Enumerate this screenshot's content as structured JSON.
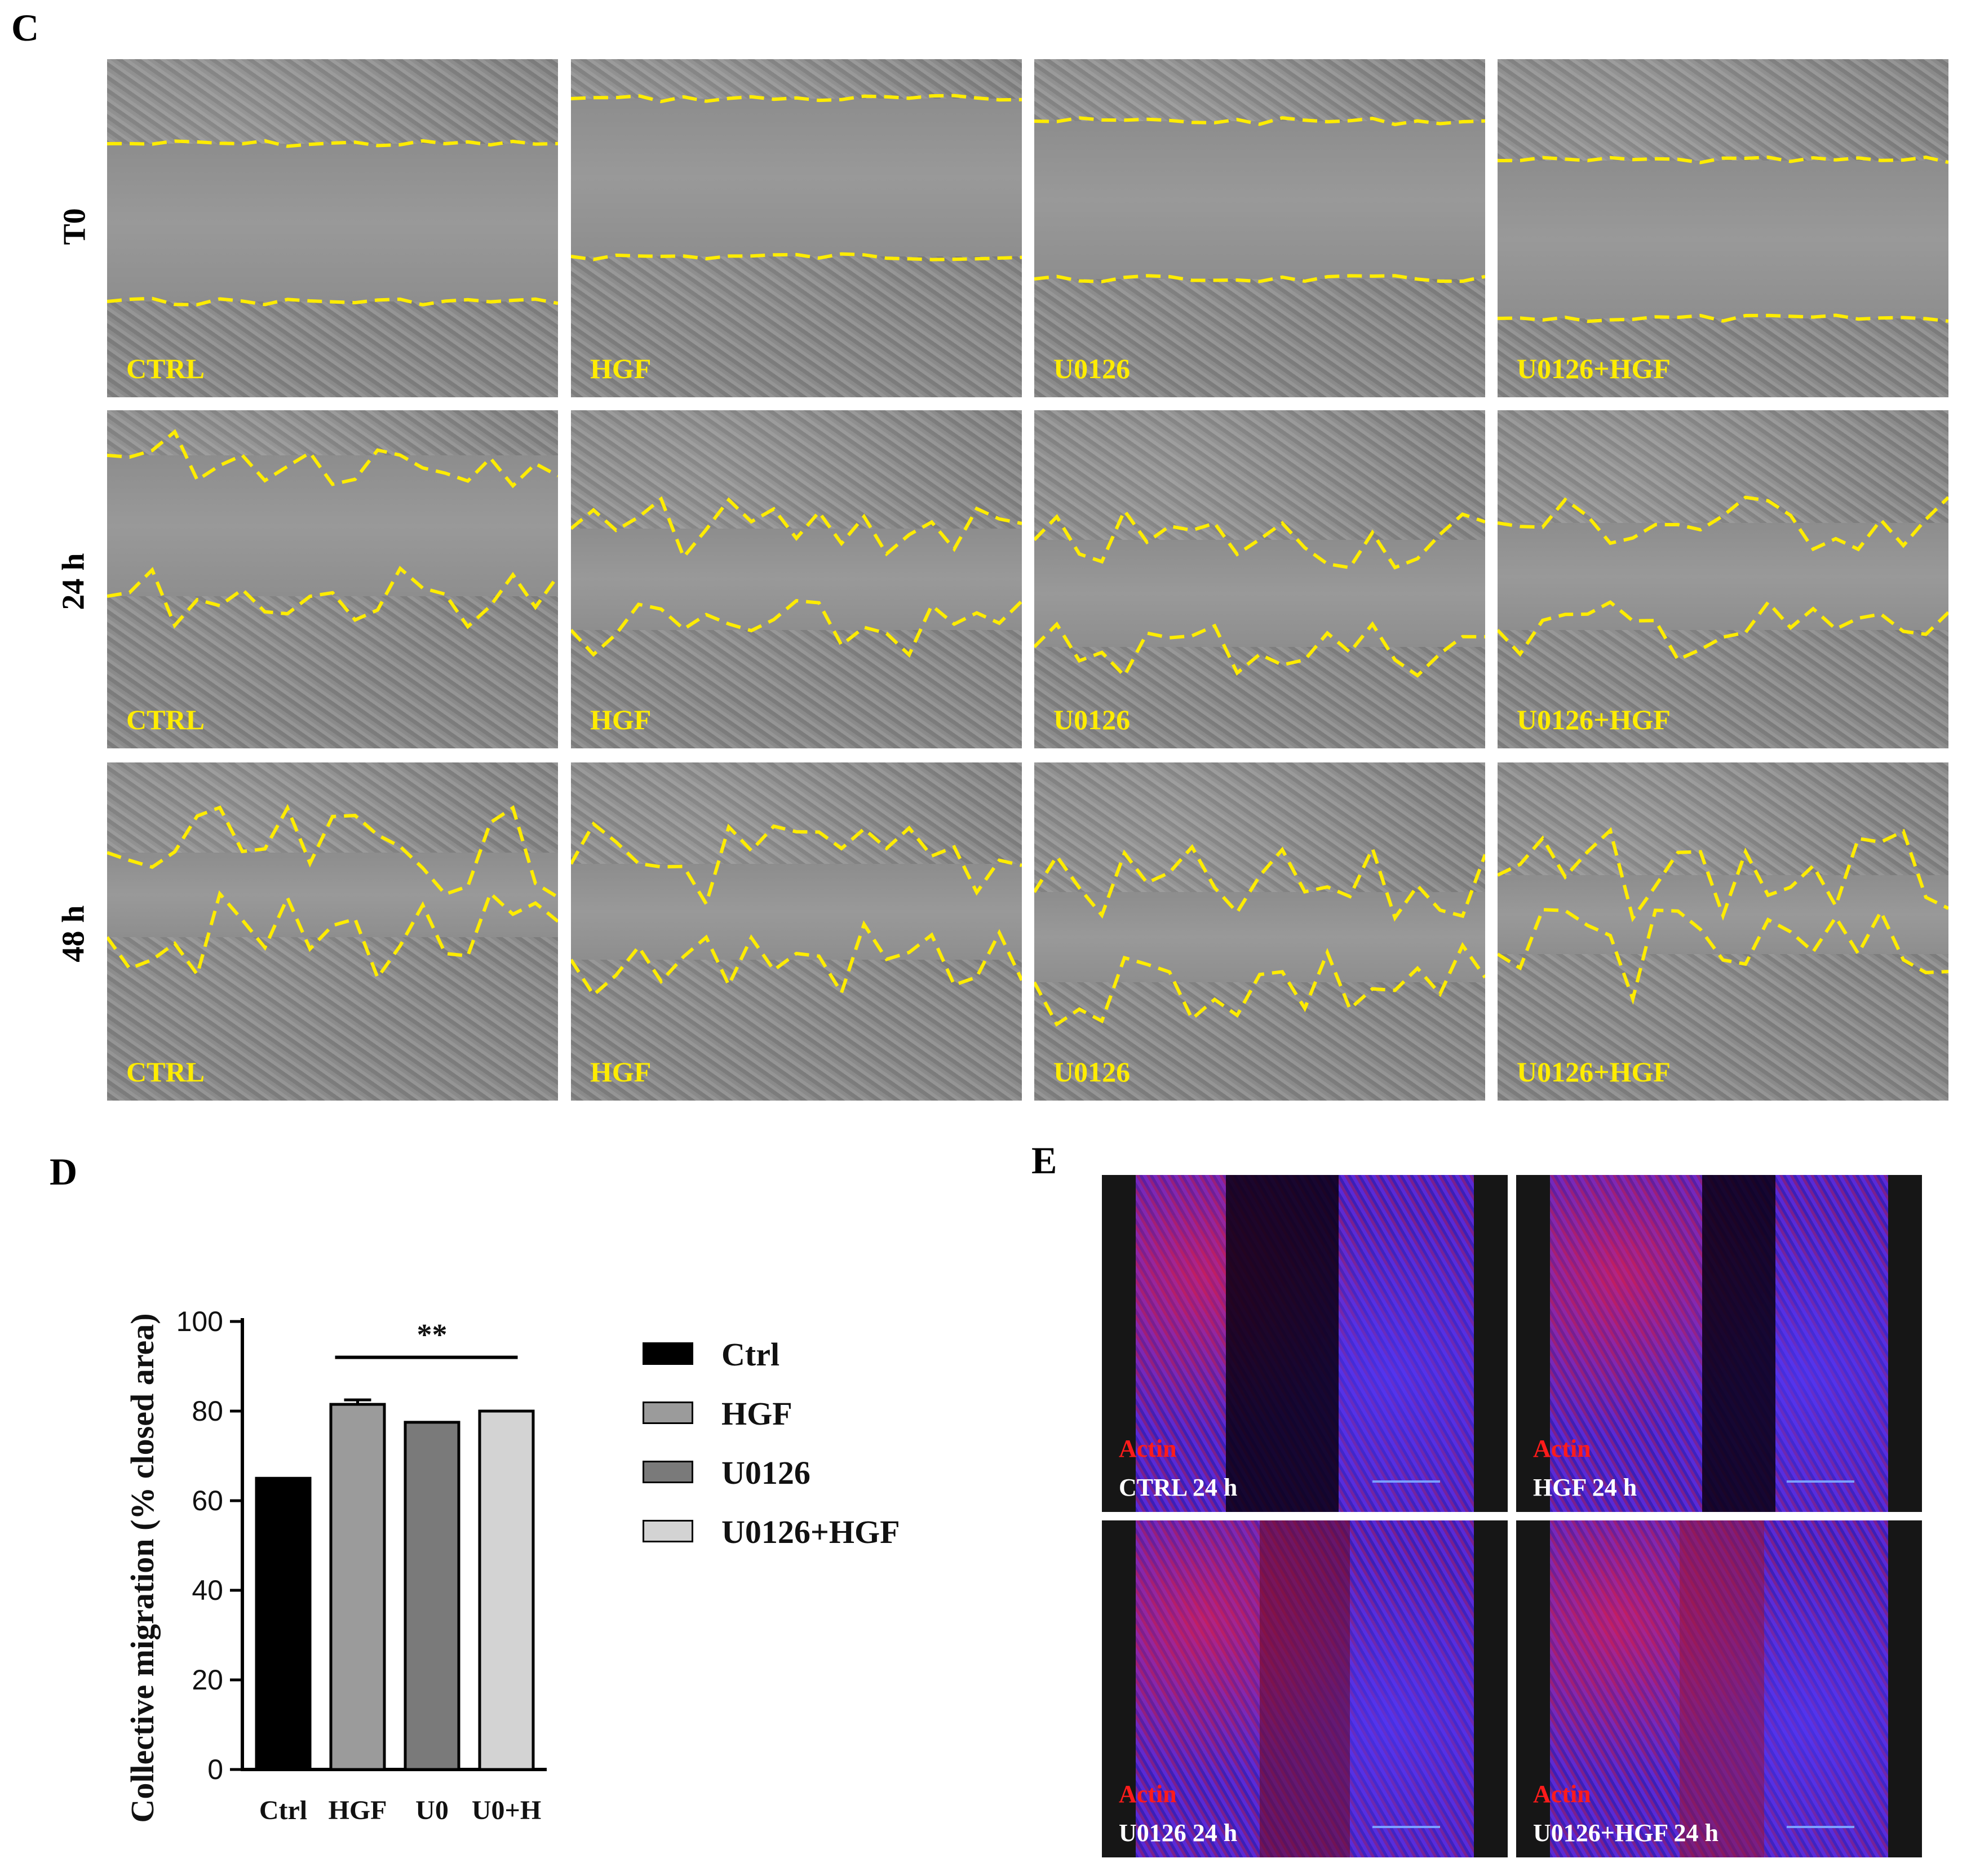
{
  "panels": {
    "C": "C",
    "D": "D",
    "E": "E"
  },
  "wound_healing": {
    "rows": [
      "T0",
      "24 h",
      "48 h"
    ],
    "columns": [
      "CTRL",
      "HGF",
      "U0126",
      "U0126+HGF"
    ],
    "line_color": "#ffec00"
  },
  "fluorescence": {
    "stain_label": "Actin",
    "stain_color": "#ff1b1b",
    "conditions": [
      "CTRL 24 h",
      "HGF 24 h",
      "U0126 24 h",
      "U0126+HGF 24 h"
    ]
  },
  "chart_data": {
    "type": "bar",
    "title": "",
    "xlabel": "",
    "ylabel": "Collective migration (% closed area)",
    "categories": [
      "Ctrl",
      "HGF",
      "U0",
      "U0+H"
    ],
    "values": [
      65,
      81.5,
      77.5,
      80
    ],
    "errors": [
      0,
      1,
      0,
      0
    ],
    "colors": [
      "#000000",
      "#9b9b9b",
      "#7a7a7a",
      "#d3d3d3"
    ],
    "ylim": [
      0,
      100
    ],
    "yticks": [
      0,
      20,
      40,
      60,
      80,
      100
    ],
    "significance": {
      "label": "**",
      "from": "HGF",
      "to": "U0+H"
    },
    "legend": [
      "Ctrl",
      "HGF",
      "U0126",
      "U0126+HGF"
    ],
    "legend_position": "right",
    "grid": false
  }
}
